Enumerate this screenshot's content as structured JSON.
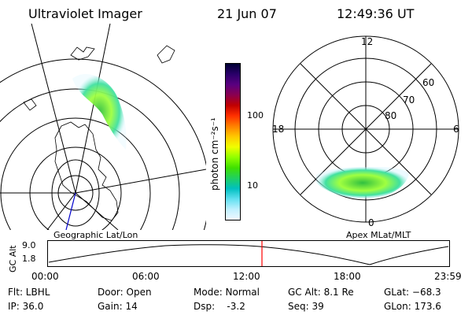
{
  "header": {
    "title": "Ultraviolet Imager",
    "date": "21 Jun 07",
    "time": "12:49:36 UT"
  },
  "colorbar": {
    "unit_label": "photon cm⁻²s⁻¹",
    "ticks": [
      "100",
      "10"
    ],
    "colors": [
      "#000033",
      "#2a006a",
      "#5a0080",
      "#8a0050",
      "#c00000",
      "#ff3000",
      "#ff8000",
      "#ffc800",
      "#f0ff00",
      "#90ff00",
      "#40e000",
      "#20d060",
      "#00c0c0",
      "#60e0f0",
      "#c0f0ff",
      "#f0f8ff"
    ]
  },
  "left_map": {
    "label": "Geographic Lat/Lon"
  },
  "right_map": {
    "label": "Apex MLat/MLT",
    "mlt_labels": {
      "top": "12",
      "left": "18",
      "right": "6",
      "bottom": "0"
    },
    "mlat_labels": [
      "60",
      "70",
      "80"
    ]
  },
  "altitude_plot": {
    "y_axis_label": "GC Alt",
    "y_ticks": [
      "9.0",
      "1.8"
    ],
    "x_ticks": [
      "00:00",
      "06:00",
      "12:00",
      "18:00",
      "23:59"
    ],
    "current_time_marker_color": "#ff0000"
  },
  "footer": {
    "filter": "Flt: LBHL",
    "ip": "IP: 36.0",
    "door": "Door: Open",
    "gain": "Gain: 14",
    "mode": "Mode: Normal",
    "dsp": "Dsp:    -3.2",
    "gc_alt": "GC Alt: 8.1 Re",
    "seq": "Seq: 39",
    "glat": "GLat: −68.3",
    "glon": "GLon: 173.6"
  }
}
